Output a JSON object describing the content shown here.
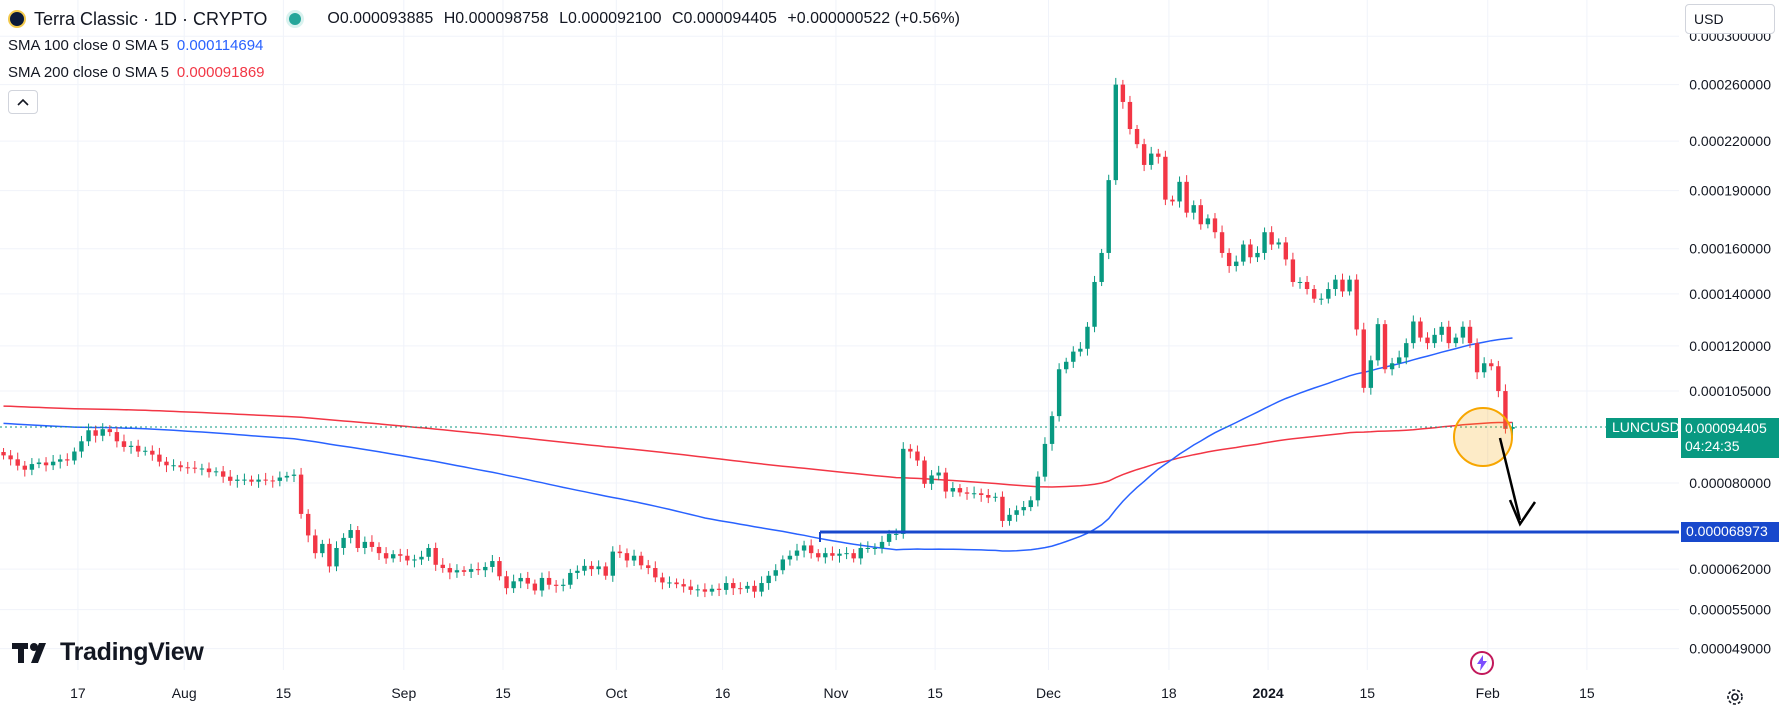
{
  "header": {
    "title": "Terra Classic · 1D · CRYPTO",
    "ohlc": [
      "O0.000093885",
      "H0.000098758",
      "L0.000092100",
      "C0.000094405",
      "+0.000000522 (+0.56%)"
    ]
  },
  "indicators": [
    {
      "label": "SMA 100 close 0 SMA 5",
      "value": "0.000114694",
      "color": "#2962ff"
    },
    {
      "label": "SMA 200 close 0 SMA 5",
      "value": "0.000091869",
      "color": "#f23645"
    }
  ],
  "currency": {
    "value": "USD"
  },
  "watermark": {
    "text": "TradingView"
  },
  "badges": {
    "symbol": "LUNCUSD",
    "last_price": "0.000094405",
    "countdown": "04:24:35",
    "level_price": "0.000068973"
  },
  "colors": {
    "up": "#089981",
    "down": "#f23645",
    "sma100": "#2962ff",
    "sma200": "#f23645",
    "level": "#1848cc",
    "circle": "#f7a600"
  },
  "chart_data": {
    "type": "candlestick",
    "price_ticks": [
      "0.000300000",
      "0.000260000",
      "0.000220000",
      "0.000190000",
      "0.000160000",
      "0.000140000",
      "0.000120000",
      "0.000105000",
      "0.000080000",
      "0.000062000",
      "0.000055000",
      "0.000049000"
    ],
    "price_tick_values": [
      0.0003,
      0.00026,
      0.00022,
      0.00019,
      0.00016,
      0.00014,
      0.00012,
      0.000105,
      8e-05,
      6.2e-05,
      5.5e-05,
      4.9e-05
    ],
    "time_ticks": [
      {
        "label": "17",
        "date": "2023-07-17",
        "bold": false
      },
      {
        "label": "Aug",
        "date": "2023-08-01",
        "bold": false
      },
      {
        "label": "15",
        "date": "2023-08-15",
        "bold": false
      },
      {
        "label": "Sep",
        "date": "2023-09-01",
        "bold": false
      },
      {
        "label": "15",
        "date": "2023-09-15",
        "bold": false
      },
      {
        "label": "Oct",
        "date": "2023-10-01",
        "bold": false
      },
      {
        "label": "16",
        "date": "2023-10-16",
        "bold": false
      },
      {
        "label": "Nov",
        "date": "2023-11-01",
        "bold": false
      },
      {
        "label": "15",
        "date": "2023-11-15",
        "bold": false
      },
      {
        "label": "Dec",
        "date": "2023-12-01",
        "bold": false
      },
      {
        "label": "18",
        "date": "2023-12-18",
        "bold": false
      },
      {
        "label": "2024",
        "date": "2024-01-01",
        "bold": true
      },
      {
        "label": "15",
        "date": "2024-01-15",
        "bold": false
      },
      {
        "label": "Feb",
        "date": "2024-02-01",
        "bold": false
      },
      {
        "label": "15",
        "date": "2024-02-15",
        "bold": false
      }
    ],
    "x_range": [
      "2023-07-06",
      "2024-02-28"
    ],
    "y_range": [
      4.6e-05,
      0.000302
    ],
    "y_scale": "log",
    "candles_close": [
      8.68e-05,
      8.58e-05,
      8.42e-05,
      8.32e-05,
      8.46e-05,
      8.5e-05,
      8.43e-05,
      8.52e-05,
      8.58e-05,
      8.55e-05,
      8.78e-05,
      9.05e-05,
      9.35e-05,
      9.2e-05,
      9.38e-05,
      9.3e-05,
      9.05e-05,
      8.9e-05,
      8.93e-05,
      8.78e-05,
      8.8e-05,
      8.7e-05,
      8.52e-05,
      8.43e-05,
      8.43e-05,
      8.38e-05,
      8.37e-05,
      8.35e-05,
      8.35e-05,
      8.26e-05,
      8.28e-05,
      8.15e-05,
      8.05e-05,
      8.08e-05,
      8.08e-05,
      8.03e-05,
      8.08e-05,
      8.06e-05,
      8.05e-05,
      8.13e-05,
      8.17e-05,
      8.2e-05,
      7.3e-05,
      6.85e-05,
      6.5e-05,
      6.68e-05,
      6.25e-05,
      6.6e-05,
      6.8e-05,
      6.96e-05,
      6.6e-05,
      6.72e-05,
      6.62e-05,
      6.5e-05,
      6.4e-05,
      6.48e-05,
      6.45e-05,
      6.36e-05,
      6.38e-05,
      6.43e-05,
      6.6e-05,
      6.28e-05,
      6.22e-05,
      6.14e-05,
      6.18e-05,
      6.15e-05,
      6.2e-05,
      6.18e-05,
      6.24e-05,
      6.35e-05,
      6.07e-05,
      5.86e-05,
      5.98e-05,
      6.04e-05,
      5.94e-05,
      5.82e-05,
      6.04e-05,
      5.92e-05,
      5.9e-05,
      5.92e-05,
      6.13e-05,
      6.17e-05,
      6.26e-05,
      6.2e-05,
      6.25e-05,
      6.08e-05,
      6.53e-05,
      6.5e-05,
      6.36e-05,
      6.45e-05,
      6.27e-05,
      6.22e-05,
      6.05e-05,
      5.96e-05,
      5.96e-05,
      5.93e-05,
      5.89e-05,
      5.83e-05,
      5.84e-05,
      5.8e-05,
      5.85e-05,
      5.83e-05,
      5.95e-05,
      5.86e-05,
      5.85e-05,
      5.9e-05,
      5.8e-05,
      5.95e-05,
      6.08e-05,
      6.18e-05,
      6.38e-05,
      6.45e-05,
      6.55e-05,
      6.65e-05,
      6.5e-05,
      6.42e-05,
      6.5e-05,
      6.45e-05,
      6.49e-05,
      6.5e-05,
      6.4e-05,
      6.6e-05,
      6.6e-05,
      6.6e-05,
      6.72e-05,
      6.88e-05,
      6.88e-05,
      8.85e-05,
      8.78e-05,
      8.55e-05,
      7.98e-05,
      8.18e-05,
      8.25e-05,
      7.8e-05,
      7.88e-05,
      7.78e-05,
      7.75e-05,
      7.76e-05,
      7.72e-05,
      7.66e-05,
      7.68e-05,
      7.15e-05,
      7.28e-05,
      7.38e-05,
      7.45e-05,
      7.6e-05,
      8.15e-05,
      8.98e-05,
      9.75e-05,
      0.000112,
      0.0001145,
      0.000118,
      0.000119,
      0.000127,
      0.000145,
      0.000158,
      0.000196,
      0.00026,
      0.000247,
      0.000228,
      0.000218,
      0.000205,
      0.000212,
      0.00021,
      0.000185,
      0.000184,
      0.000195,
      0.000178,
      0.000182,
      0.000172,
      0.000175,
      0.000168,
      0.000158,
      0.000152,
      0.000154,
      0.000162,
      0.000156,
      0.000158,
      0.000168,
      0.000162,
      0.000163,
      0.000155,
      0.000145,
      0.000145,
      0.000142,
      0.000138,
      0.000138,
      0.000142,
      0.000146,
      0.000141,
      0.000146,
      0.000126,
      0.000106,
      0.000115,
      0.000128,
      0.000112,
      0.000114,
      0.000116,
      0.000121,
      0.000129,
      0.000123,
      0.000121,
      0.000124,
      0.000127,
      0.000121,
      0.000123,
      0.000127,
      0.000121,
      0.000111,
      0.000114,
      0.000113,
      0.000105,
      9.39e-05,
      9.44e-05
    ]
  }
}
